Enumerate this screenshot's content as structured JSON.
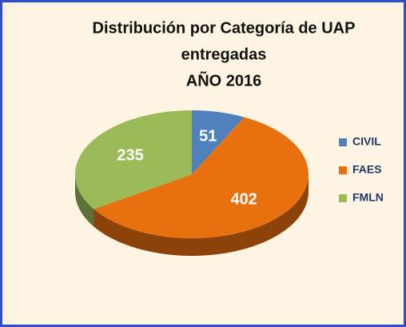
{
  "chart_data": {
    "type": "pie",
    "title": [
      "Distribución por Categoría  de UAP",
      "entregadas",
      "AÑO 2016"
    ],
    "categories": [
      "CIVIL",
      "FAES",
      "FMLN"
    ],
    "values": [
      51,
      402,
      235
    ],
    "colors": [
      "#4f81bd",
      "#e8700f",
      "#9bbb59"
    ],
    "legend": "right"
  }
}
